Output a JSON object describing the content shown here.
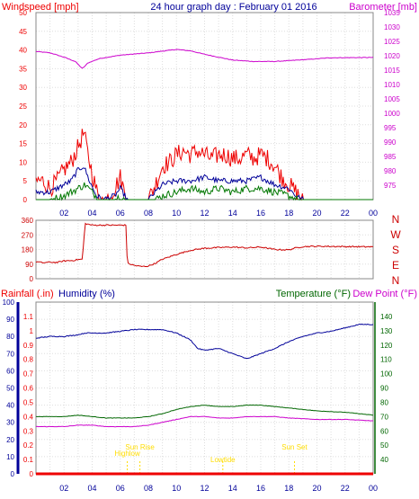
{
  "colors": {
    "wind": "#ee0000",
    "wind_avg": "#000099",
    "wind_low": "#007700",
    "barometer": "#cc00cc",
    "direction": "#cc0000",
    "rain": "#ee0000",
    "humidity": "#000099",
    "temperature": "#006600",
    "dewpoint": "#cc00cc",
    "sun_events": "#ffdd00",
    "time_axis": "#000099",
    "grid": "#dddddd"
  },
  "chart_data": [
    {
      "type": "line",
      "title": "24 hour graph day : February 01 2016",
      "left_axis_label": "Windspeed [mph]",
      "right_axis_label": "Barometer [mb]",
      "left_ylim": [
        0,
        50
      ],
      "right_ylim": [
        970,
        1035
      ],
      "left_ticks": [
        "0",
        "5",
        "10",
        "15",
        "20",
        "25",
        "30",
        "35",
        "40",
        "45",
        "50"
      ],
      "right_ticks": [
        "975",
        "980",
        "985",
        "990",
        "995",
        "1000",
        "1005",
        "1010",
        "1015",
        "1020",
        "1025",
        "1030",
        "1035"
      ],
      "x_range": [
        0,
        24
      ],
      "x_tick_labels": [
        "02",
        "04",
        "06",
        "08",
        "10",
        "12",
        "14",
        "16",
        "18",
        "20",
        "22",
        "00"
      ],
      "grid": true,
      "series": [
        {
          "name": "Barometer [mb]",
          "axis": "right",
          "points": [
            [
              0,
              1021.5
            ],
            [
              1,
              1021.0
            ],
            [
              2,
              1019.5
            ],
            [
              2.8,
              1018.0
            ],
            [
              3.3,
              1015.5
            ],
            [
              3.7,
              1017.5
            ],
            [
              4.5,
              1019.0
            ],
            [
              6,
              1020.2
            ],
            [
              8,
              1021.0
            ],
            [
              10,
              1022.2
            ],
            [
              11,
              1021.7
            ],
            [
              12,
              1020.5
            ],
            [
              13,
              1019.5
            ],
            [
              14,
              1018.5
            ],
            [
              15.5,
              1018.0
            ],
            [
              17,
              1018.0
            ],
            [
              19,
              1018.6
            ],
            [
              21,
              1019.3
            ],
            [
              24,
              1019.4
            ]
          ]
        },
        {
          "name": "Wind gust",
          "axis": "left",
          "points": [
            [
              0,
              5
            ],
            [
              0.5,
              5
            ],
            [
              1,
              3
            ],
            [
              1.5,
              5
            ],
            [
              2,
              8
            ],
            [
              2.5,
              10
            ],
            [
              3,
              14
            ],
            [
              3.4,
              18
            ],
            [
              3.7,
              12
            ],
            [
              4,
              7
            ],
            [
              4.4,
              1
            ],
            [
              4.8,
              0
            ],
            [
              5,
              0
            ],
            [
              5.6,
              3
            ],
            [
              6,
              6
            ],
            [
              6.3,
              2
            ],
            [
              6.6,
              0
            ],
            [
              7,
              0
            ],
            [
              8,
              0
            ],
            [
              8.5,
              4
            ],
            [
              9,
              9
            ],
            [
              9.5,
              10
            ],
            [
              10,
              12
            ],
            [
              10.5,
              13
            ],
            [
              11,
              12
            ],
            [
              11.5,
              13
            ],
            [
              12,
              12
            ],
            [
              12.5,
              11
            ],
            [
              13,
              12
            ],
            [
              13.5,
              12
            ],
            [
              14,
              11
            ],
            [
              14.5,
              11
            ],
            [
              15,
              12
            ],
            [
              15.5,
              11
            ],
            [
              16,
              12
            ],
            [
              16.5,
              11
            ],
            [
              17,
              9
            ],
            [
              17.5,
              6
            ],
            [
              18,
              4
            ],
            [
              18.5,
              2
            ],
            [
              19,
              0
            ],
            [
              24,
              0
            ]
          ]
        },
        {
          "name": "Wind average",
          "axis": "left",
          "points": [
            [
              0,
              2
            ],
            [
              1,
              2
            ],
            [
              2,
              4
            ],
            [
              2.5,
              5
            ],
            [
              3,
              8
            ],
            [
              3.4,
              9
            ],
            [
              3.8,
              5
            ],
            [
              4.3,
              1
            ],
            [
              4.8,
              0
            ],
            [
              5.6,
              1
            ],
            [
              6,
              3
            ],
            [
              6.5,
              0
            ],
            [
              8,
              0
            ],
            [
              8.5,
              2
            ],
            [
              9,
              4
            ],
            [
              10,
              5
            ],
            [
              11,
              5
            ],
            [
              12,
              6
            ],
            [
              13,
              5
            ],
            [
              14,
              5
            ],
            [
              15,
              5
            ],
            [
              16,
              6
            ],
            [
              17,
              4
            ],
            [
              18,
              3
            ],
            [
              18.5,
              1
            ],
            [
              19,
              0
            ],
            [
              24,
              0
            ]
          ]
        },
        {
          "name": "Wind low",
          "axis": "left",
          "points": [
            [
              0,
              0
            ],
            [
              1,
              0
            ],
            [
              2,
              1
            ],
            [
              2.5,
              2
            ],
            [
              3,
              3
            ],
            [
              3.5,
              4
            ],
            [
              4,
              2
            ],
            [
              4.5,
              0
            ],
            [
              5.6,
              0
            ],
            [
              6,
              1
            ],
            [
              6.4,
              0
            ],
            [
              8.5,
              0
            ],
            [
              9,
              1
            ],
            [
              10,
              2
            ],
            [
              11,
              3
            ],
            [
              12,
              2
            ],
            [
              13,
              3
            ],
            [
              14,
              2
            ],
            [
              15,
              3
            ],
            [
              16,
              3
            ],
            [
              17,
              2
            ],
            [
              18,
              1
            ],
            [
              18.6,
              0
            ],
            [
              24,
              0
            ]
          ]
        }
      ]
    },
    {
      "type": "line",
      "title": "",
      "ylim": [
        0,
        360
      ],
      "left_ticks": [
        "0",
        "90",
        "180",
        "270",
        "360"
      ],
      "right_tick_labels": [
        "N",
        "W",
        "S",
        "E",
        "N"
      ],
      "x_range": [
        0,
        24
      ],
      "x_tick_labels": [],
      "grid": true,
      "series": [
        {
          "name": "Wind direction",
          "points": [
            [
              0,
              105
            ],
            [
              0.5,
              98
            ],
            [
              1,
              102
            ],
            [
              1.5,
              100
            ],
            [
              2,
              110
            ],
            [
              2.6,
              112
            ],
            [
              3,
              118
            ],
            [
              3.3,
              120
            ],
            [
              3.5,
              340
            ],
            [
              4,
              330
            ],
            [
              5,
              330
            ],
            [
              6,
              330
            ],
            [
              6.4,
              330
            ],
            [
              6.5,
              95
            ],
            [
              7,
              82
            ],
            [
              7.5,
              75
            ],
            [
              8,
              78
            ],
            [
              8.5,
              95
            ],
            [
              9,
              120
            ],
            [
              10,
              150
            ],
            [
              11,
              175
            ],
            [
              12,
              188
            ],
            [
              13,
              192
            ],
            [
              14,
              195
            ],
            [
              15,
              190
            ],
            [
              16,
              195
            ],
            [
              17,
              180
            ],
            [
              18,
              178
            ],
            [
              18.5,
              190
            ],
            [
              19,
              198
            ],
            [
              20,
              200
            ],
            [
              22,
              198
            ],
            [
              24,
              196
            ]
          ]
        }
      ]
    },
    {
      "type": "line",
      "title": "",
      "left_axis_label": "Rainfall (.in)",
      "humidity_axis_label": "Humidity (%)",
      "right_axis_label": "Temperature (°F)",
      "dewpoint_label": "Dew Point (°F)",
      "rain_ylim": [
        0,
        1.2
      ],
      "humidity_ylim": [
        0,
        100
      ],
      "temp_ylim": [
        30,
        150
      ],
      "rain_ticks": [
        "0",
        "0.1",
        "0.2",
        "0.3",
        "0.4",
        "0.5",
        "0.6",
        "0.7",
        "0.8",
        "0.9",
        "1",
        "1.1"
      ],
      "humidity_ticks": [
        "0",
        "10",
        "20",
        "30",
        "40",
        "50",
        "60",
        "70",
        "80",
        "90",
        "100"
      ],
      "temp_ticks": [
        "40",
        "50",
        "60",
        "70",
        "80",
        "90",
        "100",
        "110",
        "120",
        "130",
        "140"
      ],
      "x_range": [
        0,
        24
      ],
      "x_tick_labels": [
        "02",
        "04",
        "06",
        "08",
        "10",
        "12",
        "14",
        "16",
        "18",
        "20",
        "22",
        "00"
      ],
      "grid": true,
      "series": [
        {
          "name": "Humidity (%)",
          "axis": "humidity",
          "points": [
            [
              0,
              79
            ],
            [
              1,
              80
            ],
            [
              2,
              80
            ],
            [
              3,
              81
            ],
            [
              3.5,
              82
            ],
            [
              5,
              82
            ],
            [
              6,
              83
            ],
            [
              7,
              84
            ],
            [
              8,
              84
            ],
            [
              9,
              84
            ],
            [
              10,
              82
            ],
            [
              11,
              78
            ],
            [
              11.5,
              73
            ],
            [
              12,
              72
            ],
            [
              13,
              73
            ],
            [
              14,
              70
            ],
            [
              15,
              67
            ],
            [
              16,
              70
            ],
            [
              17,
              73
            ],
            [
              18,
              77
            ],
            [
              19,
              80
            ],
            [
              20,
              82
            ],
            [
              21,
              83
            ],
            [
              22,
              85
            ],
            [
              23,
              87
            ],
            [
              24,
              87
            ]
          ]
        },
        {
          "name": "Temperature (°F)",
          "axis": "temp",
          "points": [
            [
              0,
              70
            ],
            [
              2,
              70
            ],
            [
              3,
              71
            ],
            [
              4,
              70
            ],
            [
              5,
              69
            ],
            [
              6,
              69
            ],
            [
              7,
              69
            ],
            [
              8,
              70
            ],
            [
              9,
              72
            ],
            [
              10,
              75
            ],
            [
              11,
              77
            ],
            [
              12,
              78
            ],
            [
              13,
              77
            ],
            [
              14,
              77
            ],
            [
              15,
              78
            ],
            [
              16,
              78
            ],
            [
              17,
              77
            ],
            [
              18,
              76
            ],
            [
              20,
              74
            ],
            [
              22,
              73
            ],
            [
              24,
              71
            ]
          ]
        },
        {
          "name": "Dew Point (°F)",
          "axis": "temp",
          "points": [
            [
              0,
              63
            ],
            [
              2,
              63
            ],
            [
              3,
              64
            ],
            [
              4,
              64
            ],
            [
              5,
              63
            ],
            [
              6,
              63
            ],
            [
              7,
              63
            ],
            [
              8,
              64
            ],
            [
              9,
              66
            ],
            [
              10,
              68
            ],
            [
              11,
              70
            ],
            [
              12,
              70
            ],
            [
              13,
              69
            ],
            [
              14,
              69
            ],
            [
              15,
              70
            ],
            [
              16,
              70
            ],
            [
              17,
              70
            ],
            [
              18,
              69
            ],
            [
              20,
              68
            ],
            [
              22,
              68
            ],
            [
              24,
              67
            ]
          ]
        },
        {
          "name": "Rainfall (.in)",
          "axis": "rain",
          "points": [
            [
              0,
              0
            ],
            [
              24,
              0
            ]
          ]
        }
      ],
      "events": [
        {
          "label": "Sun Rise",
          "x": 7.4
        },
        {
          "label": "Highlow",
          "x": 6.5
        },
        {
          "label": "Lowtide",
          "x": 13.3
        },
        {
          "label": "Sun Set",
          "x": 18.4
        }
      ]
    }
  ]
}
